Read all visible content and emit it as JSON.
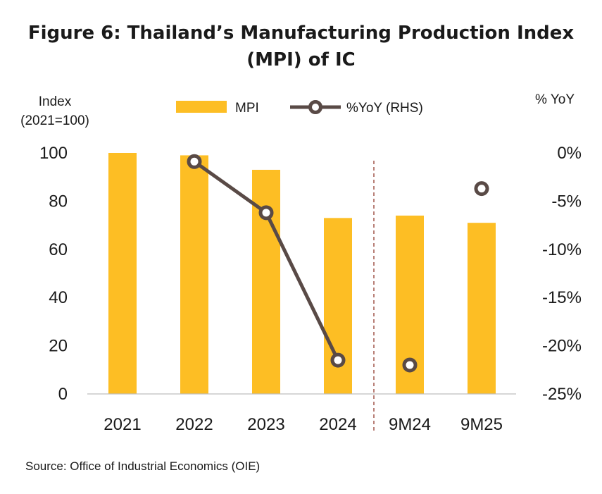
{
  "figure": {
    "title_line1": "Figure 6: Thailand’s Manufacturing Production Index",
    "title_line2": "(MPI) of IC",
    "source": "Source: Office of Industrial Economics (OIE)"
  },
  "chart_data": {
    "type": "bar",
    "title": "Figure 6: Thailand’s Manufacturing Production Index (MPI) of IC",
    "categories": [
      "2021",
      "2022",
      "2023",
      "2024",
      "9M24",
      "9M25"
    ],
    "series": [
      {
        "name": "MPI",
        "type": "bar",
        "axis": "left",
        "color": "#FDBE24",
        "values": [
          100,
          99,
          93,
          73,
          74,
          71
        ]
      },
      {
        "name": "%YoY (RHS)",
        "type": "line",
        "axis": "right",
        "color": "#594A46",
        "values": [
          null,
          -0.9,
          -6.2,
          -21.5,
          -22.0,
          -3.7
        ],
        "connected_segments": [
          [
            1,
            3
          ]
        ]
      }
    ],
    "ylabel_left_line1": "Index",
    "ylabel_left_line2": "(2021=100)",
    "ylabel_right": "% YoY",
    "ylim_left": [
      0,
      100
    ],
    "ylim_right": [
      -25,
      0
    ],
    "yticks_left": [
      "0",
      "20",
      "40",
      "60",
      "80",
      "100"
    ],
    "yticks_right": [
      "-25%",
      "-20%",
      "-15%",
      "-10%",
      "-5%",
      "0%"
    ],
    "legend_position": "top-center",
    "divider_after_category": "2024",
    "grid": false
  }
}
